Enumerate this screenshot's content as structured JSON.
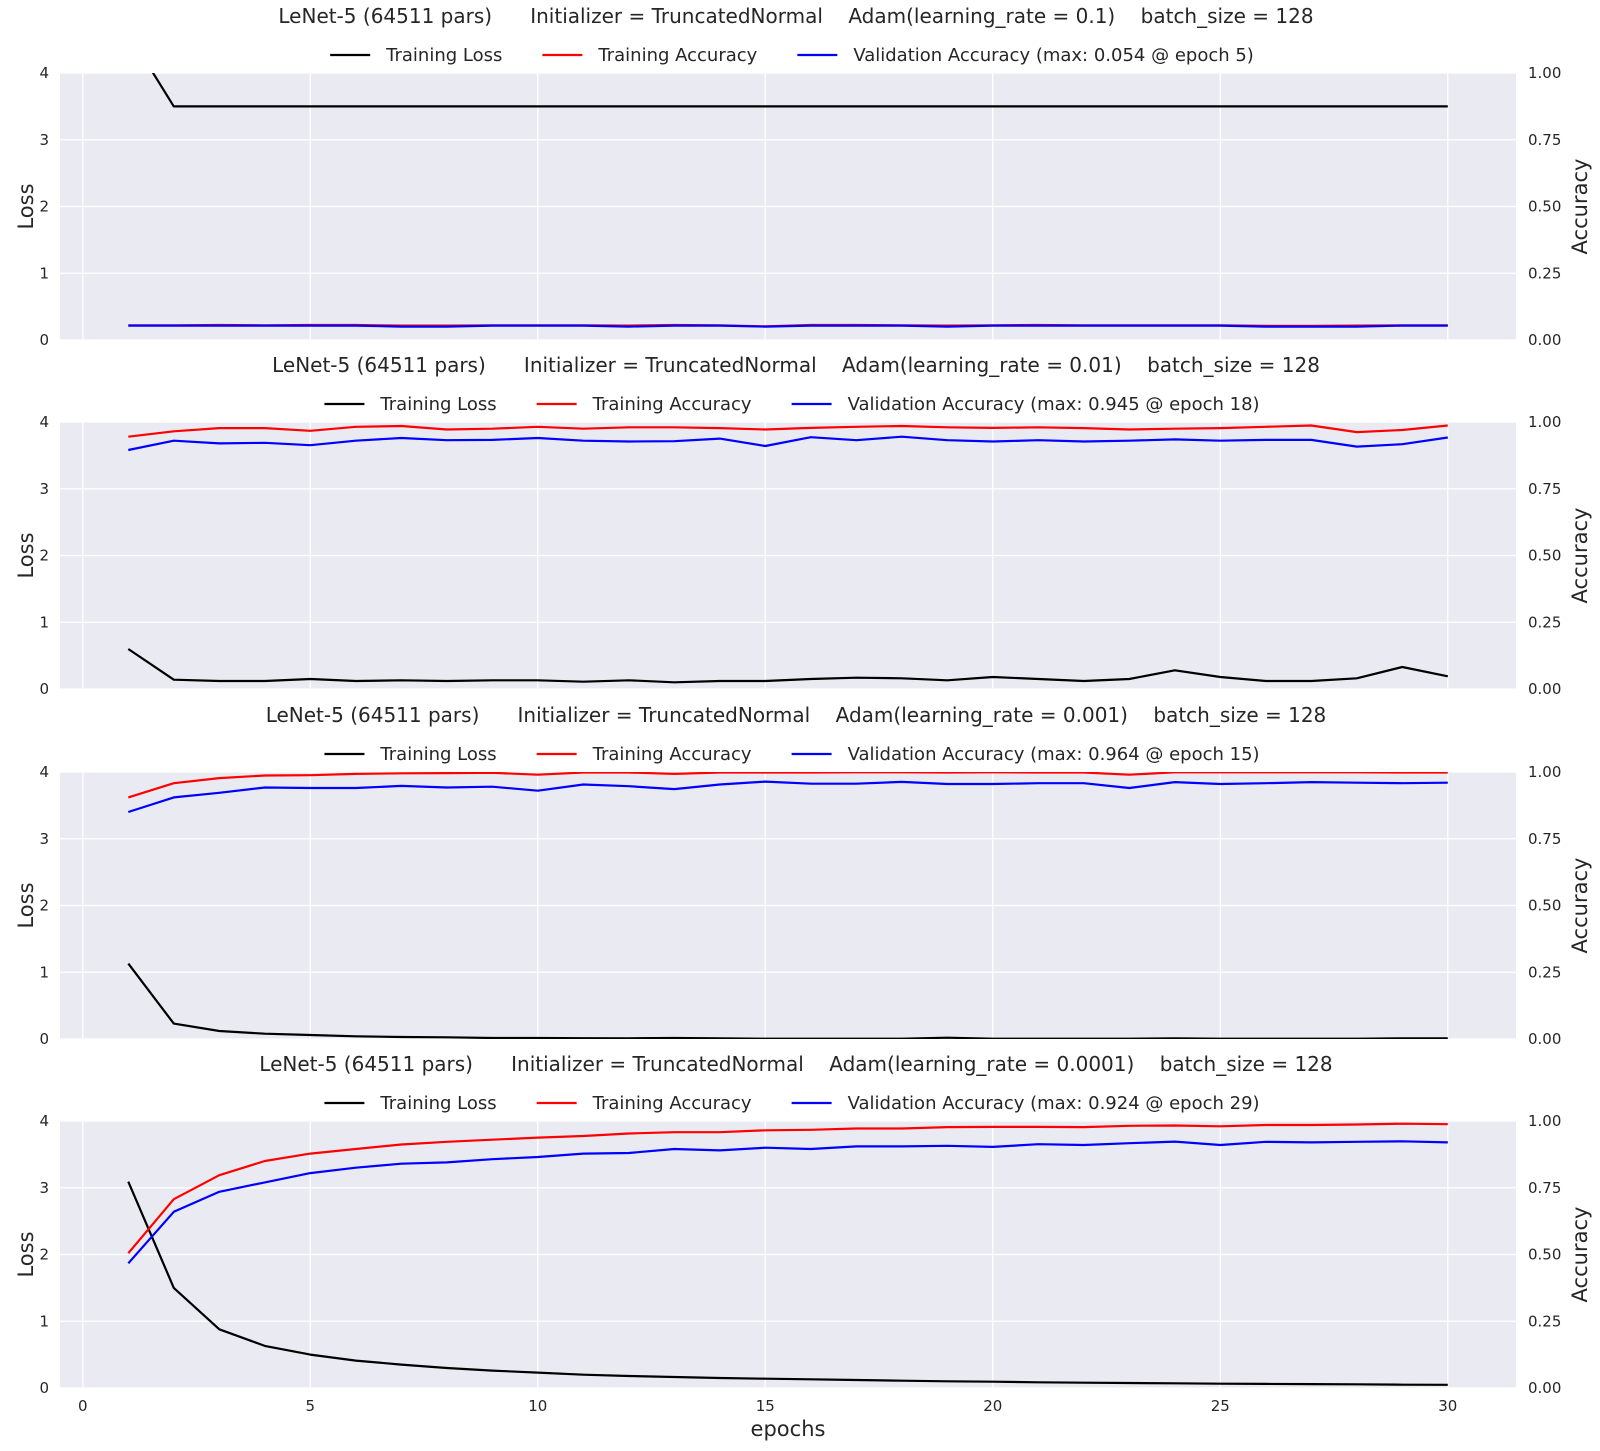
{
  "figure": {
    "xlabel": "epochs",
    "x_ticks": [
      0,
      5,
      10,
      15,
      20,
      25,
      30
    ],
    "xlim": [
      -0.5,
      31.5
    ],
    "left_ylabel": "Loss",
    "right_ylabel": "Accuracy",
    "loss_ticks": [
      "0",
      "1",
      "2",
      "3",
      "4"
    ],
    "acc_ticks": [
      "0.00",
      "0.25",
      "0.50",
      "0.75",
      "1.00"
    ],
    "legend_labels": [
      "Training Loss",
      "Training Accuracy"
    ],
    "colors": {
      "loss": "#000000",
      "train_acc": "#ff0000",
      "val_acc": "#0000ff",
      "plot_bg": "#eaeaf2",
      "grid": "#ffffff"
    }
  },
  "chart_data": [
    {
      "type": "line",
      "title": "LeNet-5 (64511 pars)      Initializer = TruncatedNormal    Adam(learning_rate = 0.1)    batch_size = 128",
      "x": [
        1,
        2,
        3,
        4,
        5,
        6,
        7,
        8,
        9,
        10,
        11,
        12,
        13,
        14,
        15,
        16,
        17,
        18,
        19,
        20,
        21,
        22,
        23,
        24,
        25,
        26,
        27,
        28,
        29,
        30
      ],
      "ylim_left": [
        0,
        4
      ],
      "ylim_right": [
        0,
        1
      ],
      "series": [
        {
          "name": "Training Loss",
          "axis": "left",
          "values": [
            4.6,
            3.5,
            3.5,
            3.5,
            3.5,
            3.5,
            3.5,
            3.5,
            3.5,
            3.5,
            3.5,
            3.5,
            3.5,
            3.5,
            3.5,
            3.5,
            3.5,
            3.5,
            3.5,
            3.5,
            3.5,
            3.5,
            3.5,
            3.5,
            3.5,
            3.5,
            3.5,
            3.5,
            3.5,
            3.5
          ]
        },
        {
          "name": "Training Accuracy",
          "axis": "right",
          "values": [
            0.055,
            0.055,
            0.056,
            0.055,
            0.056,
            0.056,
            0.054,
            0.054,
            0.055,
            0.055,
            0.055,
            0.054,
            0.056,
            0.055,
            0.051,
            0.056,
            0.056,
            0.055,
            0.054,
            0.055,
            0.056,
            0.055,
            0.055,
            0.055,
            0.055,
            0.053,
            0.053,
            0.054,
            0.055,
            0.055
          ]
        },
        {
          "name": "Validation Accuracy (max: 0.054 @ epoch 5)",
          "axis": "right",
          "values": [
            0.054,
            0.054,
            0.054,
            0.054,
            0.054,
            0.054,
            0.05,
            0.05,
            0.054,
            0.054,
            0.054,
            0.05,
            0.054,
            0.054,
            0.05,
            0.054,
            0.054,
            0.054,
            0.05,
            0.054,
            0.054,
            0.054,
            0.054,
            0.054,
            0.054,
            0.05,
            0.05,
            0.05,
            0.054,
            0.054
          ]
        }
      ]
    },
    {
      "type": "line",
      "title": "LeNet-5 (64511 pars)      Initializer = TruncatedNormal    Adam(learning_rate = 0.01)    batch_size = 128",
      "x": [
        1,
        2,
        3,
        4,
        5,
        6,
        7,
        8,
        9,
        10,
        11,
        12,
        13,
        14,
        15,
        16,
        17,
        18,
        19,
        20,
        21,
        22,
        23,
        24,
        25,
        26,
        27,
        28,
        29,
        30
      ],
      "ylim_left": [
        0,
        4
      ],
      "ylim_right": [
        0,
        1
      ],
      "series": [
        {
          "name": "Training Loss",
          "axis": "left",
          "values": [
            0.6,
            0.14,
            0.12,
            0.12,
            0.15,
            0.12,
            0.13,
            0.12,
            0.13,
            0.13,
            0.11,
            0.13,
            0.1,
            0.12,
            0.12,
            0.15,
            0.17,
            0.16,
            0.13,
            0.18,
            0.15,
            0.12,
            0.15,
            0.28,
            0.18,
            0.12,
            0.12,
            0.16,
            0.33,
            0.19
          ]
        },
        {
          "name": "Training Accuracy",
          "axis": "right",
          "values": [
            0.945,
            0.965,
            0.977,
            0.977,
            0.967,
            0.982,
            0.985,
            0.972,
            0.975,
            0.982,
            0.975,
            0.98,
            0.98,
            0.977,
            0.972,
            0.978,
            0.982,
            0.985,
            0.98,
            0.978,
            0.98,
            0.977,
            0.972,
            0.975,
            0.977,
            0.982,
            0.987,
            0.962,
            0.97,
            0.987
          ]
        },
        {
          "name": "Validation Accuracy (max: 0.945 @ epoch 18)",
          "axis": "right",
          "values": [
            0.895,
            0.93,
            0.92,
            0.922,
            0.913,
            0.93,
            0.94,
            0.932,
            0.933,
            0.94,
            0.93,
            0.927,
            0.928,
            0.938,
            0.91,
            0.943,
            0.932,
            0.945,
            0.932,
            0.927,
            0.932,
            0.927,
            0.93,
            0.935,
            0.93,
            0.933,
            0.933,
            0.908,
            0.917,
            0.942
          ]
        }
      ]
    },
    {
      "type": "line",
      "title": "LeNet-5 (64511 pars)      Initializer = TruncatedNormal    Adam(learning_rate = 0.001)    batch_size = 128",
      "x": [
        1,
        2,
        3,
        4,
        5,
        6,
        7,
        8,
        9,
        10,
        11,
        12,
        13,
        14,
        15,
        16,
        17,
        18,
        19,
        20,
        21,
        22,
        23,
        24,
        25,
        26,
        27,
        28,
        29,
        30
      ],
      "ylim_left": [
        0,
        4
      ],
      "ylim_right": [
        0,
        1
      ],
      "series": [
        {
          "name": "Training Loss",
          "axis": "left",
          "values": [
            1.13,
            0.23,
            0.12,
            0.08,
            0.06,
            0.04,
            0.03,
            0.025,
            0.015,
            0.015,
            0.012,
            0.01,
            0.015,
            0.01,
            0.005,
            0.005,
            0.005,
            0.005,
            0.02,
            0.005,
            0.005,
            0.005,
            0.005,
            0.01,
            0.005,
            0.005,
            0.005,
            0.005,
            0.01,
            0.01
          ]
        },
        {
          "name": "Training Accuracy",
          "axis": "right",
          "values": [
            0.905,
            0.958,
            0.977,
            0.987,
            0.988,
            0.993,
            0.995,
            0.996,
            0.997,
            0.99,
            0.998,
            0.998,
            0.993,
            0.998,
            0.998,
            0.998,
            0.999,
            0.999,
            0.998,
            0.999,
            0.998,
            0.998,
            0.99,
            0.999,
            0.999,
            0.999,
            0.999,
            0.999,
            0.998,
            0.998
          ]
        },
        {
          "name": "Validation Accuracy (max: 0.964 @ epoch 15)",
          "axis": "right",
          "values": [
            0.85,
            0.905,
            0.922,
            0.942,
            0.94,
            0.94,
            0.948,
            0.942,
            0.945,
            0.93,
            0.953,
            0.947,
            0.936,
            0.953,
            0.964,
            0.956,
            0.956,
            0.963,
            0.955,
            0.955,
            0.958,
            0.958,
            0.94,
            0.962,
            0.955,
            0.958,
            0.962,
            0.96,
            0.958,
            0.96
          ]
        }
      ]
    },
    {
      "type": "line",
      "title": "LeNet-5 (64511 pars)      Initializer = TruncatedNormal    Adam(learning_rate = 0.0001)    batch_size = 128",
      "x": [
        1,
        2,
        3,
        4,
        5,
        6,
        7,
        8,
        9,
        10,
        11,
        12,
        13,
        14,
        15,
        16,
        17,
        18,
        19,
        20,
        21,
        22,
        23,
        24,
        25,
        26,
        27,
        28,
        29,
        30
      ],
      "ylim_left": [
        0,
        4
      ],
      "ylim_right": [
        0,
        1
      ],
      "series": [
        {
          "name": "Training Loss",
          "axis": "left",
          "values": [
            3.09,
            1.5,
            0.88,
            0.63,
            0.5,
            0.41,
            0.35,
            0.3,
            0.26,
            0.23,
            0.2,
            0.18,
            0.165,
            0.15,
            0.14,
            0.13,
            0.12,
            0.11,
            0.1,
            0.095,
            0.085,
            0.08,
            0.075,
            0.07,
            0.065,
            0.062,
            0.058,
            0.055,
            0.05,
            0.048
          ]
        },
        {
          "name": "Training Accuracy",
          "axis": "right",
          "values": [
            0.505,
            0.707,
            0.797,
            0.85,
            0.878,
            0.895,
            0.912,
            0.922,
            0.93,
            0.938,
            0.944,
            0.953,
            0.958,
            0.958,
            0.965,
            0.967,
            0.972,
            0.972,
            0.977,
            0.978,
            0.978,
            0.977,
            0.982,
            0.983,
            0.98,
            0.985,
            0.985,
            0.987,
            0.99,
            0.988
          ]
        },
        {
          "name": "Validation Accuracy (max: 0.924 @ epoch 29)",
          "axis": "right",
          "values": [
            0.467,
            0.66,
            0.735,
            0.77,
            0.805,
            0.825,
            0.84,
            0.845,
            0.857,
            0.865,
            0.878,
            0.88,
            0.895,
            0.89,
            0.9,
            0.895,
            0.905,
            0.905,
            0.907,
            0.903,
            0.913,
            0.91,
            0.917,
            0.923,
            0.91,
            0.922,
            0.92,
            0.922,
            0.924,
            0.92
          ]
        }
      ]
    }
  ]
}
